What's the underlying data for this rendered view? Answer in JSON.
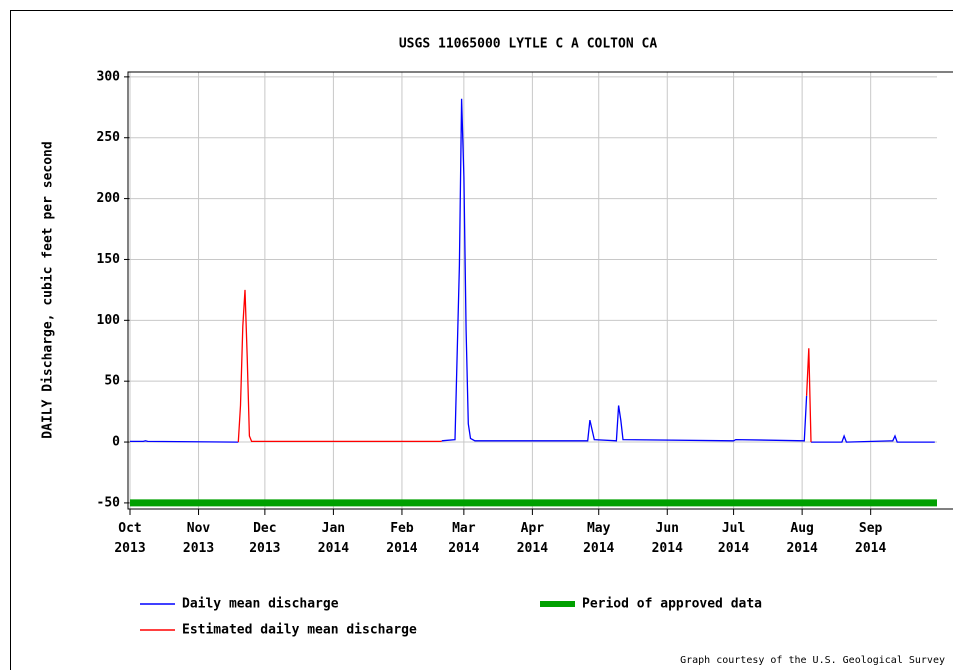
{
  "chart_data": {
    "type": "line",
    "title": "USGS 11065000 LYTLE C A COLTON CA",
    "y_label": "DAILY Discharge, cubic feet per second",
    "footer": "Graph courtesy of the U.S. Geological Survey",
    "xlim": [
      "2013-10-01",
      "2014-10-01"
    ],
    "ylim": [
      -55,
      304
    ],
    "yticks": [
      -50,
      0,
      50,
      100,
      150,
      200,
      250,
      300
    ],
    "xticks": [
      {
        "value": "2013-10-01",
        "label": "Oct\n2013"
      },
      {
        "value": "2013-11-01",
        "label": "Nov\n2013"
      },
      {
        "value": "2013-12-01",
        "label": "Dec\n2013"
      },
      {
        "value": "2014-01-01",
        "label": "Jan\n2014"
      },
      {
        "value": "2014-02-01",
        "label": "Feb\n2014"
      },
      {
        "value": "2014-03-01",
        "label": "Mar\n2014"
      },
      {
        "value": "2014-04-01",
        "label": "Apr\n2014"
      },
      {
        "value": "2014-05-01",
        "label": "May\n2014"
      },
      {
        "value": "2014-06-01",
        "label": "Jun\n2014"
      },
      {
        "value": "2014-07-01",
        "label": "Jul\n2014"
      },
      {
        "value": "2014-08-01",
        "label": "Aug\n2014"
      },
      {
        "value": "2014-09-01",
        "label": "Sep\n2014"
      }
    ],
    "grid": true,
    "series": [
      {
        "name": "Daily mean discharge",
        "color": "#0000ff",
        "x": [
          "2013-10-01",
          "2013-10-07",
          "2013-10-08",
          "2013-10-09",
          "2013-11-19",
          "2013-12-01",
          "2014-02-19",
          "2014-02-25",
          "2014-02-27",
          "2014-02-28",
          "2014-03-01",
          "2014-03-02",
          "2014-03-03",
          "2014-03-04",
          "2014-03-06",
          "2014-04-26",
          "2014-04-27",
          "2014-04-28",
          "2014-04-29",
          "2014-05-09",
          "2014-05-10",
          "2014-05-11",
          "2014-05-12",
          "2014-07-01",
          "2014-07-02",
          "2014-08-02",
          "2014-08-03",
          "2014-08-04",
          "2014-08-05",
          "2014-08-19",
          "2014-08-20",
          "2014-08-21",
          "2014-09-11",
          "2014-09-12",
          "2014-09-13",
          "2014-09-30"
        ],
        "values": [
          0.5,
          0.5,
          1,
          0.5,
          0,
          null,
          1,
          2,
          145,
          282,
          218,
          92,
          15,
          3,
          1,
          1,
          18,
          10,
          2,
          1,
          30,
          18,
          2,
          1,
          2,
          1,
          38,
          null,
          0,
          0,
          5,
          0,
          1,
          5,
          0,
          0
        ]
      },
      {
        "name": "Estimated daily mean discharge",
        "color": "#ff0000",
        "x": [
          "2013-11-19",
          "2013-11-20",
          "2013-11-21",
          "2013-11-22",
          "2013-11-23",
          "2013-11-24",
          "2013-11-25",
          "2014-02-19",
          "2014-05-01",
          "2014-08-03",
          "2014-08-04",
          "2014-08-05"
        ],
        "values": [
          0,
          30,
          95,
          125,
          70,
          5,
          0.5,
          0.5,
          null,
          38,
          77,
          0
        ]
      },
      {
        "name": "Period of approved data",
        "color": "#00a000",
        "x": [
          "2013-10-01",
          "2014-10-01"
        ],
        "values": [
          -50,
          -50
        ]
      }
    ]
  }
}
